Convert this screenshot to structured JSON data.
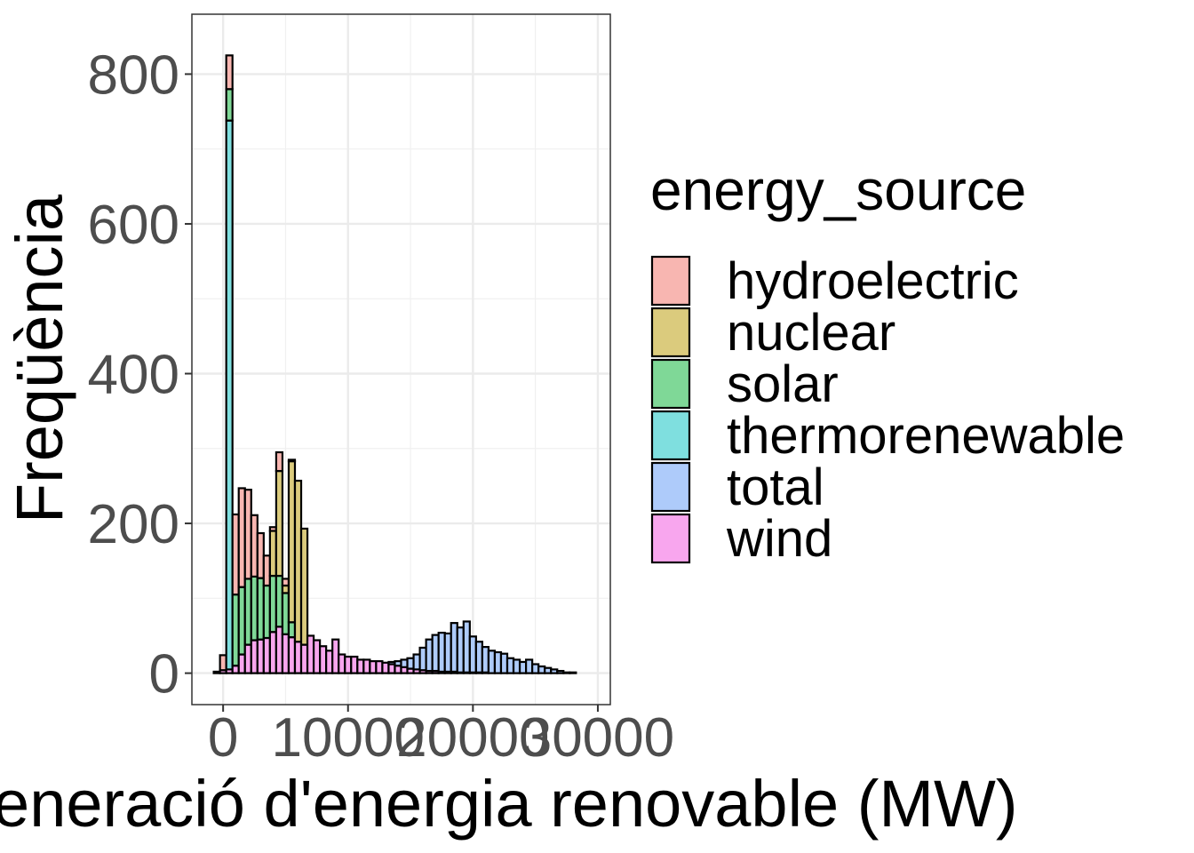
{
  "chart_data": {
    "type": "bar",
    "stacked": true,
    "xlabel": "Generació d'energia renovable (MW)",
    "ylabel": "Freqüència",
    "xlim": [
      -2500,
      31000
    ],
    "ylim": [
      -42,
      880
    ],
    "x_ticks": [
      0,
      10000,
      20000,
      30000
    ],
    "x_tick_labels": [
      "0",
      "10000",
      "20000",
      "30000"
    ],
    "y_ticks": [
      0,
      200,
      400,
      600,
      800
    ],
    "y_tick_labels": [
      "0",
      "200",
      "400",
      "600",
      "800"
    ],
    "grid": true,
    "bin_width": 500,
    "x": [
      -500,
      0,
      500,
      1000,
      1500,
      2000,
      2500,
      3000,
      3500,
      4000,
      4500,
      5000,
      5500,
      6000,
      6500,
      7000,
      7500,
      8000,
      8500,
      9000,
      9500,
      10000,
      10500,
      11000,
      11500,
      12000,
      12500,
      13000,
      13500,
      14000,
      14500,
      15000,
      15500,
      16000,
      16500,
      17000,
      17500,
      18000,
      18500,
      19000,
      19500,
      20000,
      20500,
      21000,
      21500,
      22000,
      22500,
      23000,
      23500,
      24000,
      24500,
      25000,
      25500,
      26000,
      26500,
      27000,
      27500,
      28000,
      28500,
      29000
    ],
    "series": [
      {
        "name": "wind",
        "color": "#f8a6ee",
        "values": [
          2,
          4,
          5,
          10,
          25,
          38,
          44,
          45,
          47,
          55,
          62,
          52,
          48,
          42,
          38,
          50,
          44,
          36,
          30,
          45,
          25,
          22,
          22,
          18,
          18,
          16,
          16,
          14,
          12,
          10,
          8,
          6,
          5,
          4,
          3,
          3,
          2,
          2,
          2,
          1,
          1,
          1,
          1,
          1,
          0,
          0,
          0,
          0,
          0,
          0,
          0,
          0,
          0,
          0,
          0,
          0,
          0,
          0,
          0,
          0
        ]
      },
      {
        "name": "total",
        "color": "#aecbfa",
        "values": [
          0,
          0,
          0,
          0,
          0,
          0,
          0,
          0,
          0,
          0,
          0,
          0,
          0,
          0,
          0,
          0,
          0,
          0,
          0,
          0,
          0,
          0,
          0,
          0,
          0,
          0,
          0,
          0,
          3,
          6,
          10,
          14,
          20,
          30,
          42,
          48,
          52,
          51,
          65,
          60,
          68,
          48,
          41,
          34,
          30,
          28,
          26,
          20,
          18,
          15,
          18,
          12,
          9,
          7,
          5,
          3,
          1,
          1,
          0,
          0
        ]
      },
      {
        "name": "thermorenewable",
        "color": "#7fdfdf",
        "values": [
          0,
          0,
          733,
          0,
          0,
          0,
          0,
          0,
          0,
          0,
          0,
          0,
          0,
          0,
          0,
          0,
          0,
          0,
          0,
          0,
          0,
          0,
          0,
          0,
          0,
          0,
          0,
          0,
          0,
          0,
          0,
          0,
          0,
          0,
          0,
          0,
          0,
          0,
          0,
          0,
          0,
          0,
          0,
          0,
          0,
          0,
          0,
          0,
          0,
          0,
          0,
          0,
          0,
          0,
          0,
          0,
          0,
          0,
          0,
          0
        ]
      },
      {
        "name": "solar",
        "color": "#7fd897",
        "values": [
          0,
          0,
          42,
          95,
          90,
          88,
          85,
          82,
          70,
          75,
          68,
          55,
          20,
          0,
          0,
          0,
          0,
          0,
          0,
          0,
          0,
          0,
          0,
          0,
          0,
          0,
          0,
          0,
          0,
          0,
          0,
          0,
          0,
          0,
          0,
          0,
          0,
          0,
          0,
          0,
          0,
          0,
          0,
          0,
          0,
          0,
          0,
          0,
          0,
          0,
          0,
          0,
          0,
          0,
          0,
          0,
          0,
          0,
          0,
          0
        ]
      },
      {
        "name": "nuclear",
        "color": "#dbcb7d",
        "values": [
          0,
          0,
          0,
          0,
          0,
          0,
          0,
          0,
          0,
          60,
          140,
          10,
          215,
          215,
          155,
          0,
          0,
          0,
          0,
          0,
          0,
          0,
          0,
          0,
          0,
          0,
          0,
          0,
          0,
          0,
          0,
          0,
          0,
          0,
          0,
          0,
          0,
          0,
          0,
          0,
          0,
          0,
          0,
          0,
          0,
          0,
          0,
          0,
          0,
          0,
          0,
          0,
          0,
          0,
          0,
          0,
          0,
          0,
          0,
          0
        ]
      },
      {
        "name": "hydroelectric",
        "color": "#f8b6b1",
        "values": [
          0,
          20,
          45,
          107,
          132,
          119,
          82,
          60,
          40,
          5,
          25,
          9,
          2,
          0,
          0,
          0,
          0,
          0,
          0,
          0,
          0,
          0,
          0,
          0,
          0,
          0,
          0,
          0,
          0,
          0,
          0,
          0,
          0,
          0,
          0,
          0,
          0,
          0,
          0,
          0,
          0,
          0,
          0,
          0,
          0,
          0,
          0,
          0,
          0,
          0,
          0,
          0,
          0,
          0,
          0,
          0,
          0,
          0,
          0,
          0
        ]
      }
    ],
    "legend": {
      "title": "energy_source",
      "position": "right",
      "entries": [
        {
          "label": "hydroelectric",
          "color": "#f8b6b1"
        },
        {
          "label": "nuclear",
          "color": "#dbcb7d"
        },
        {
          "label": "solar",
          "color": "#7fd897"
        },
        {
          "label": "thermorenewable",
          "color": "#7fdfdf"
        },
        {
          "label": "total",
          "color": "#aecbfa"
        },
        {
          "label": "wind",
          "color": "#f8a6ee"
        }
      ]
    }
  }
}
